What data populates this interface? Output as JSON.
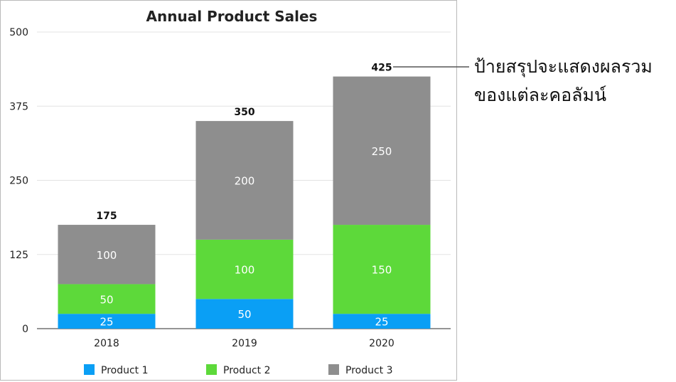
{
  "chart_data": {
    "type": "bar",
    "stacked": true,
    "title": "Annual Product Sales",
    "categories": [
      "2018",
      "2019",
      "2020"
    ],
    "series": [
      {
        "name": "Product 1",
        "values": [
          25,
          50,
          25
        ],
        "color": "#0a9ff5"
      },
      {
        "name": "Product 2",
        "values": [
          50,
          100,
          150
        ],
        "color": "#5dd93a"
      },
      {
        "name": "Product 3",
        "values": [
          100,
          200,
          250
        ],
        "color": "#8e8e8e"
      }
    ],
    "totals": [
      175,
      350,
      425
    ],
    "yticks": [
      0,
      125,
      250,
      375,
      500
    ],
    "ylim": [
      0,
      500
    ],
    "grid": true,
    "legend": "bottom"
  },
  "annotation": {
    "lines": [
      "ป้ายสรุปจะแสดงผลรวม",
      "ของแต่ละคอลัมน์"
    ]
  }
}
